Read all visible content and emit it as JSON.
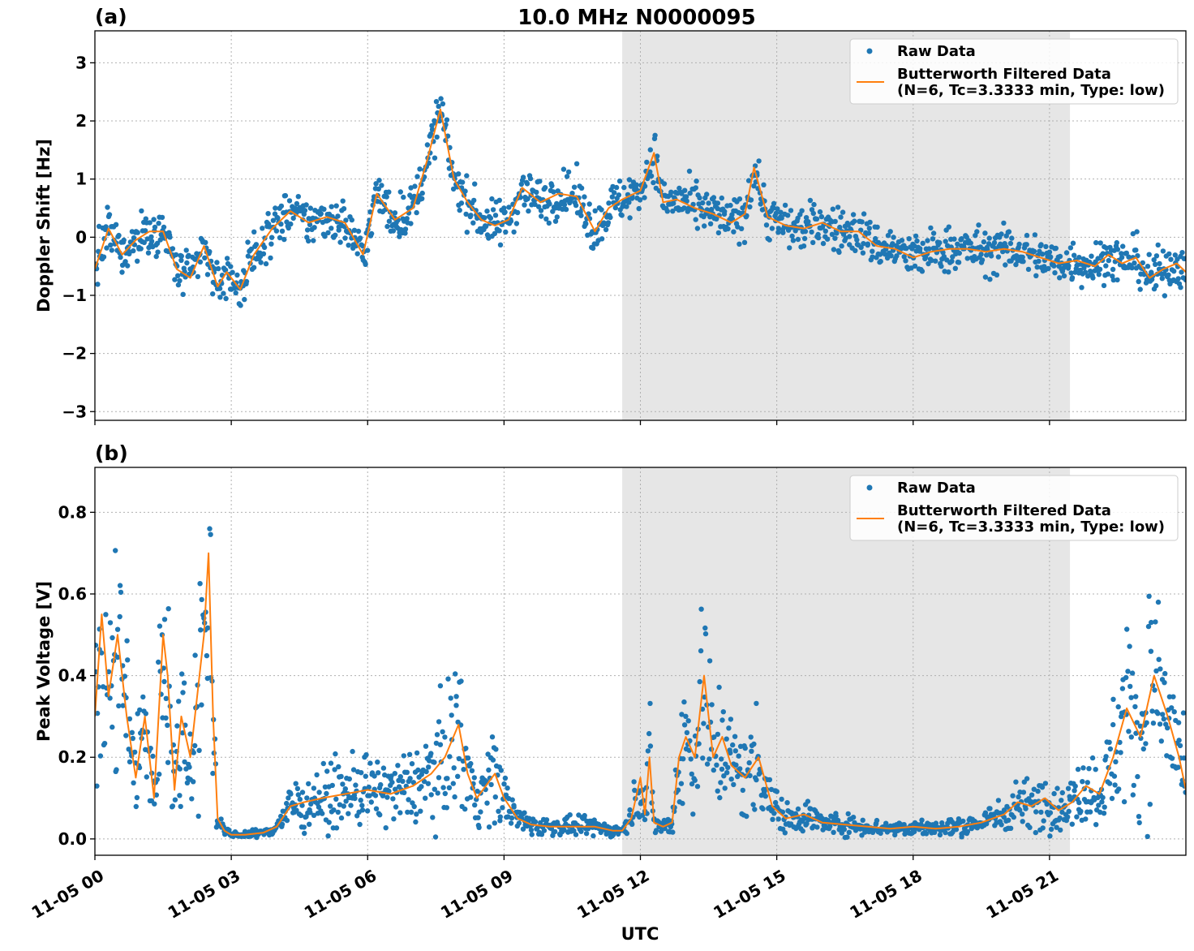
{
  "figure": {
    "title": "10.0 MHz N0000095",
    "xlabel": "UTC"
  },
  "colors": {
    "raw": "#1f77b4",
    "filtered": "#ff7f0e",
    "night_shade": "#e6e6e6"
  },
  "chart_data": [
    {
      "type": "line",
      "panel": "(a)",
      "ylabel": "Doppler Shift [Hz]",
      "xlim": [
        0,
        24
      ],
      "ylim": [
        -3.15,
        3.55
      ],
      "yticks": [
        -3,
        -2,
        -1,
        0,
        1,
        2,
        3
      ],
      "ytick_labels": [
        "−3",
        "−2",
        "−1",
        "0",
        "1",
        "2",
        "3"
      ],
      "xticks": [
        0,
        3,
        6,
        9,
        12,
        15,
        18,
        21
      ],
      "shaded_interval_hours": [
        11.6,
        21.45
      ],
      "grid": true,
      "legend_position": "top-right",
      "legend": [
        "Raw Data",
        "Butterworth Filtered Data",
        "(N=6, Tc=3.3333 min, Type: low)"
      ],
      "series": [
        {
          "name": "Butterworth Filtered Data",
          "x": [
            0,
            0.3,
            0.6,
            0.9,
            1.2,
            1.5,
            1.8,
            2.1,
            2.4,
            2.7,
            2.9,
            3.2,
            3.5,
            3.9,
            4.3,
            4.7,
            5.1,
            5.5,
            5.9,
            6.2,
            6.6,
            7.0,
            7.3,
            7.6,
            7.9,
            8.2,
            8.5,
            8.8,
            9.1,
            9.4,
            9.8,
            10.2,
            10.6,
            11.0,
            11.3,
            11.6,
            12.0,
            12.3,
            12.5,
            12.8,
            13.2,
            13.6,
            14.0,
            14.3,
            14.5,
            14.8,
            15.2,
            15.6,
            16.0,
            16.4,
            16.8,
            17.2,
            17.6,
            18.0,
            18.4,
            18.8,
            19.2,
            19.6,
            20.0,
            20.4,
            20.8,
            21.2,
            21.6,
            22.0,
            22.3,
            22.6,
            22.9,
            23.2,
            23.5,
            23.8,
            24.0
          ],
          "y": [
            -0.55,
            0.15,
            -0.3,
            -0.05,
            0.1,
            0.1,
            -0.55,
            -0.7,
            -0.15,
            -0.85,
            -0.6,
            -0.9,
            -0.3,
            0.15,
            0.45,
            0.25,
            0.35,
            0.25,
            -0.3,
            0.75,
            0.3,
            0.5,
            1.3,
            2.2,
            1.0,
            0.6,
            0.3,
            0.2,
            0.3,
            0.85,
            0.6,
            0.75,
            0.7,
            0.1,
            0.5,
            0.65,
            0.8,
            1.45,
            0.6,
            0.65,
            0.5,
            0.4,
            0.25,
            0.4,
            1.2,
            0.35,
            0.2,
            0.15,
            0.25,
            0.1,
            0.1,
            -0.15,
            -0.2,
            -0.35,
            -0.25,
            -0.2,
            -0.2,
            -0.25,
            -0.2,
            -0.25,
            -0.35,
            -0.45,
            -0.4,
            -0.5,
            -0.3,
            -0.45,
            -0.35,
            -0.7,
            -0.55,
            -0.45,
            -0.6
          ]
        },
        {
          "name": "Raw Data",
          "point_count": 1440,
          "band_half_width": [
            0.35,
            0.45
          ],
          "scatter_about": "Butterworth Filtered Data"
        }
      ]
    },
    {
      "type": "line",
      "panel": "(b)",
      "ylabel": "Peak Voltage [V]",
      "xlim": [
        0,
        24
      ],
      "ylim": [
        -0.04,
        0.91
      ],
      "yticks": [
        0.0,
        0.2,
        0.4,
        0.6,
        0.8
      ],
      "ytick_labels": [
        "0.0",
        "0.2",
        "0.4",
        "0.6",
        "0.8"
      ],
      "xticks": [
        0,
        3,
        6,
        9,
        12,
        15,
        18,
        21
      ],
      "xtick_labels": [
        "11-05 00",
        "11-05 03",
        "11-05 06",
        "11-05 09",
        "11-05 12",
        "11-05 15",
        "11-05 18",
        "11-05 21"
      ],
      "shaded_interval_hours": [
        11.6,
        21.45
      ],
      "grid": true,
      "legend_position": "top-right",
      "legend": [
        "Raw Data",
        "Butterworth Filtered Data",
        "(N=6, Tc=3.3333 min, Type: low)"
      ],
      "series": [
        {
          "name": "Butterworth Filtered Data",
          "x": [
            0,
            0.15,
            0.3,
            0.5,
            0.7,
            0.9,
            1.1,
            1.3,
            1.5,
            1.6,
            1.75,
            1.9,
            2.1,
            2.25,
            2.4,
            2.5,
            2.6,
            2.7,
            2.85,
            3.0,
            3.3,
            3.7,
            4.0,
            4.3,
            4.6,
            5.0,
            5.5,
            6.0,
            6.5,
            7.0,
            7.4,
            7.7,
            8.0,
            8.2,
            8.4,
            8.6,
            8.8,
            9.0,
            9.3,
            9.6,
            10.0,
            10.5,
            11.0,
            11.4,
            11.6,
            11.8,
            12.0,
            12.1,
            12.2,
            12.3,
            12.5,
            12.7,
            12.85,
            13.0,
            13.2,
            13.4,
            13.6,
            13.8,
            14.0,
            14.3,
            14.6,
            14.9,
            15.2,
            15.6,
            16.0,
            16.5,
            17.0,
            17.5,
            18.0,
            18.5,
            19.0,
            19.5,
            20.0,
            20.3,
            20.6,
            20.9,
            21.2,
            21.5,
            21.8,
            22.1,
            22.4,
            22.7,
            23.0,
            23.3,
            23.6,
            23.85,
            24.0
          ],
          "y": [
            0.3,
            0.55,
            0.35,
            0.5,
            0.3,
            0.15,
            0.3,
            0.1,
            0.5,
            0.4,
            0.12,
            0.3,
            0.2,
            0.35,
            0.5,
            0.7,
            0.3,
            0.05,
            0.02,
            0.01,
            0.01,
            0.015,
            0.03,
            0.08,
            0.09,
            0.1,
            0.11,
            0.12,
            0.11,
            0.13,
            0.16,
            0.2,
            0.28,
            0.16,
            0.1,
            0.13,
            0.16,
            0.1,
            0.05,
            0.035,
            0.03,
            0.03,
            0.03,
            0.02,
            0.02,
            0.05,
            0.15,
            0.06,
            0.2,
            0.04,
            0.03,
            0.04,
            0.2,
            0.25,
            0.2,
            0.4,
            0.2,
            0.25,
            0.18,
            0.15,
            0.2,
            0.08,
            0.05,
            0.06,
            0.04,
            0.035,
            0.03,
            0.025,
            0.03,
            0.025,
            0.03,
            0.04,
            0.06,
            0.09,
            0.08,
            0.1,
            0.07,
            0.09,
            0.13,
            0.11,
            0.2,
            0.32,
            0.25,
            0.4,
            0.3,
            0.2,
            0.12
          ]
        },
        {
          "name": "Raw Data",
          "point_count": 1440,
          "scatter_about": "Butterworth Filtered Data",
          "relative_spread": 0.35
        }
      ]
    }
  ]
}
